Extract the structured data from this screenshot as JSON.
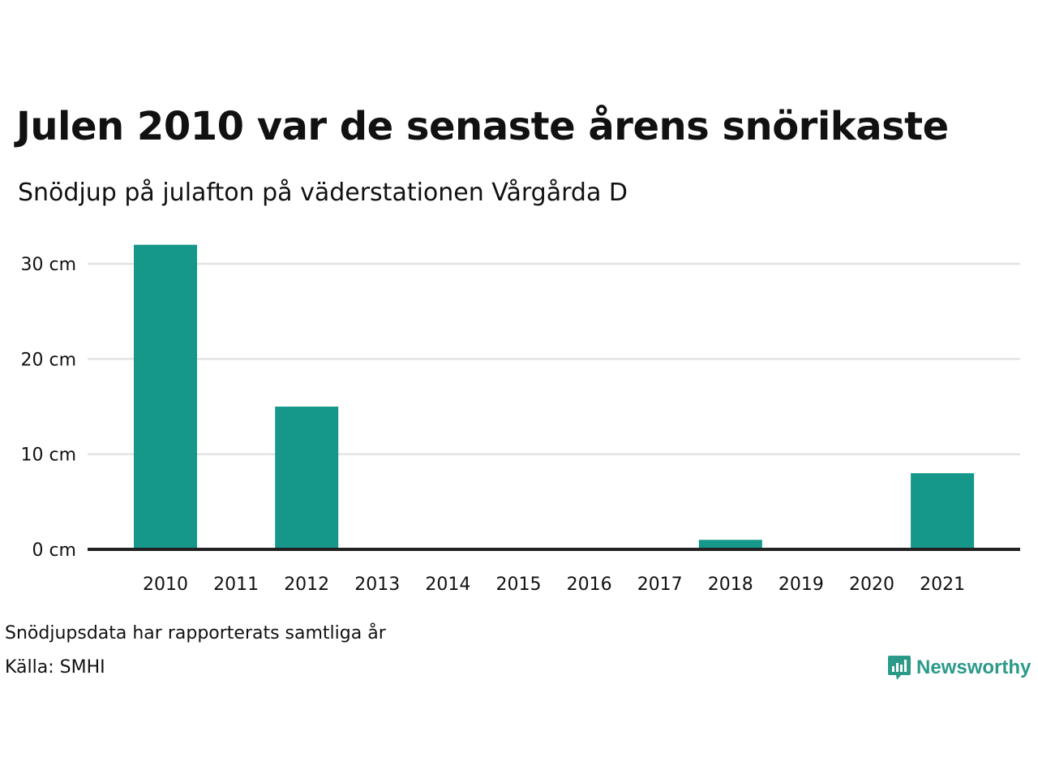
{
  "title": "Julen 2010 var de senaste årens snörikaste",
  "subtitle": "Snödjup på julafton på väderstationen Vårgårda D",
  "footnote": "Snödjupsdata har rapporterats samtliga år",
  "source": "Källa: SMHI",
  "brand": {
    "name": "Newsworthy",
    "icon": "newsworthy-logo-icon",
    "color": "#2b9a89"
  },
  "colors": {
    "bar": "#15978a",
    "grid": "#e3e3e3",
    "baseline": "#222222"
  },
  "chart_data": {
    "type": "bar",
    "title": "Julen 2010 var de senaste årens snörikaste",
    "subtitle": "Snödjup på julafton på väderstationen Vårgårda D",
    "xlabel": "",
    "ylabel": "",
    "categories": [
      "2010",
      "2011",
      "2012",
      "2013",
      "2014",
      "2015",
      "2016",
      "2017",
      "2018",
      "2019",
      "2020",
      "2021"
    ],
    "values": [
      32,
      0,
      15,
      0,
      0,
      0,
      0,
      0,
      1,
      0,
      0,
      8
    ],
    "ylim": [
      0,
      32
    ],
    "yticks": [
      0,
      10,
      20,
      30
    ],
    "ytick_labels": [
      "0 cm",
      "10 cm",
      "20 cm",
      "30 cm"
    ],
    "grid": true,
    "legend": "none"
  }
}
